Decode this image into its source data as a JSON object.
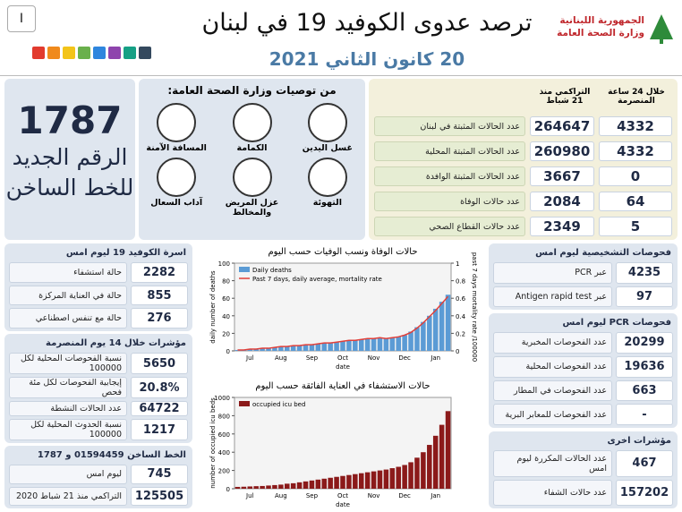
{
  "header": {
    "badge": "ا",
    "title": "ترصد عدوى الكوفيد 19 في لبنان",
    "date": "20 كانون الثاني 2021",
    "ministry": [
      "الجمهورية اللبنانية",
      "وزارة الصحة العامة"
    ]
  },
  "hotline": {
    "number": "1787",
    "lines": [
      "الرقم الجديد",
      "للخط الساخن"
    ]
  },
  "recommendations": {
    "title": "من توصيات وزارة الصحة العامة:",
    "items": [
      "غسل اليدين",
      "الكمامة",
      "المسافة الآمنة",
      "التهوئة",
      "عزل المريض والمخالط",
      "آداب السعال"
    ]
  },
  "daily_table": {
    "headers": [
      "خلال 24 ساعة المنصرمة",
      "التراكمي منذ 21 شباط"
    ],
    "rows": [
      {
        "label": "عدد الحالات المثبتة في لبنان",
        "last_24h": 4332,
        "cumulative": 264647
      },
      {
        "label": "عدد الحالات المثبتة المحلية",
        "last_24h": 4332,
        "cumulative": 260980
      },
      {
        "label": "عدد الحالات المثبتة الوافدة",
        "last_24h": 0,
        "cumulative": 3667
      },
      {
        "label": "عدد حالات الوفاة",
        "last_24h": 64,
        "cumulative": 2084
      },
      {
        "label": "عدد حالات القطاع الصحي",
        "last_24h": 5,
        "cumulative": 2349
      }
    ]
  },
  "left_panels": [
    {
      "title": "اسرة الكوفيد 19 ليوم امس",
      "rows": [
        {
          "label": "حالة استشفاء",
          "value": 2282
        },
        {
          "label": "حالة في العناية المركزة",
          "value": 855
        },
        {
          "label": "حالة مع تنفس اصطناعي",
          "value": 276
        }
      ]
    },
    {
      "title": "مؤشرات خلال 14 يوم المنصرمة",
      "rows": [
        {
          "label": "نسبة الفحوصات المحلية لكل 100000",
          "value": 5650
        },
        {
          "label": "إيجابية الفحوصات لكل مئة فحص",
          "value": "20.8%"
        },
        {
          "label": "عدد الحالات النشطة",
          "value": 64722
        },
        {
          "label": "نسبة الحدوث المحلية لكل 100000",
          "value": 1217
        }
      ]
    },
    {
      "title": "الخط الساخن 01594459 و 1787",
      "rows": [
        {
          "label": "ليوم امس",
          "value": 745
        },
        {
          "label": "التراكمي منذ 21 شباط 2020",
          "value": 125505
        }
      ]
    }
  ],
  "right_panels": [
    {
      "title": "فحوصات التشخيصية ليوم امس",
      "rows": [
        {
          "label": "عبر PCR",
          "value": 4235
        },
        {
          "label": "عبر Antigen rapid test",
          "value": 97
        }
      ]
    },
    {
      "title": "فحوصات PCR ليوم امس",
      "rows": [
        {
          "label": "عدد الفحوصات المخبرية",
          "value": 20299
        },
        {
          "label": "عدد الفحوصات المحلية",
          "value": 19636
        },
        {
          "label": "عدد الفحوصات في المطار",
          "value": 663
        },
        {
          "label": "عدد الفحوصات للمعابر البرية",
          "value": "-"
        }
      ]
    },
    {
      "title": "مؤشرات اخرى",
      "rows": [
        {
          "label": "عدد الحالات المكررة ليوم امس",
          "value": 467
        },
        {
          "label": "عدد حالات الشفاء",
          "value": 157202
        }
      ]
    }
  ],
  "chart_data": [
    {
      "type": "bar",
      "title": "حالات الوفاة ونسب الوفيات حسب اليوم",
      "xlabel": "date",
      "ylabel": "daily number of deaths",
      "y2label": "past 7 days mortality rate /100000",
      "xticks": [
        "Jul",
        "Aug",
        "Sep",
        "Oct",
        "Nov",
        "Dec",
        "Jan"
      ],
      "ylim": [
        0,
        100
      ],
      "yticks": [
        0,
        20,
        40,
        60,
        80,
        100
      ],
      "y2lim": [
        0,
        1
      ],
      "y2ticks": [
        0,
        0.2,
        0.4,
        0.6,
        0.8,
        1
      ],
      "series": [
        {
          "name": "Daily deaths",
          "color": "#5b9bd5",
          "values": [
            1,
            1,
            2,
            2,
            3,
            3,
            4,
            5,
            5,
            6,
            6,
            7,
            7,
            8,
            9,
            9,
            10,
            11,
            12,
            12,
            13,
            14,
            14,
            15,
            14,
            15,
            16,
            18,
            22,
            27,
            33,
            40,
            48,
            56,
            64
          ]
        },
        {
          "name": "Past 7 days, daily average, mortality rate",
          "color": "#e0403a",
          "axis": "y2",
          "values": [
            0.01,
            0.01,
            0.02,
            0.02,
            0.03,
            0.03,
            0.04,
            0.05,
            0.05,
            0.06,
            0.06,
            0.07,
            0.07,
            0.08,
            0.09,
            0.09,
            0.1,
            0.11,
            0.12,
            0.12,
            0.13,
            0.14,
            0.14,
            0.15,
            0.14,
            0.15,
            0.16,
            0.18,
            0.21,
            0.26,
            0.32,
            0.39,
            0.46,
            0.54,
            0.62
          ]
        }
      ]
    },
    {
      "type": "bar",
      "title": "حالات الاستشفاء في العناية الفائقة حسب اليوم",
      "xlabel": "date",
      "ylabel": "number of occupied icu beds",
      "xticks": [
        "Jul",
        "Aug",
        "Sep",
        "Oct",
        "Nov",
        "Dec",
        "Jan"
      ],
      "ylim": [
        0,
        1000
      ],
      "yticks": [
        0,
        200,
        400,
        600,
        800,
        1000
      ],
      "series": [
        {
          "name": "occupied icu bed",
          "color": "#8b1a1a",
          "values": [
            20,
            22,
            25,
            28,
            30,
            35,
            40,
            45,
            55,
            60,
            70,
            80,
            90,
            100,
            110,
            120,
            130,
            140,
            150,
            160,
            170,
            180,
            190,
            200,
            210,
            225,
            240,
            260,
            290,
            340,
            400,
            480,
            580,
            700,
            850
          ]
        }
      ]
    }
  ]
}
